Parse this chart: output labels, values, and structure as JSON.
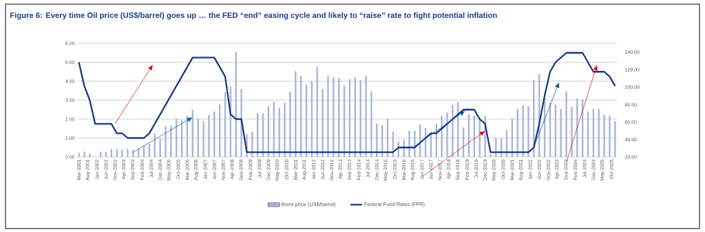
{
  "chart_data": {
    "type": "bar",
    "title": "Figure 6: Every time Oil price (US$/barrel) goes up … the FED “end” easing cycle and likely to “raise” rate to fight potential inflation",
    "x": [
      "2001-03",
      "2001-06",
      "2001-09",
      "2001-12",
      "2002-03",
      "2002-06",
      "2002-09",
      "2002-12",
      "2003-03",
      "2003-06",
      "2003-09",
      "2003-12",
      "2004-03",
      "2004-06",
      "2004-09",
      "2004-12",
      "2005-03",
      "2005-06",
      "2005-09",
      "2005-12",
      "2006-03",
      "2006-06",
      "2006-09",
      "2006-12",
      "2007-03",
      "2007-06",
      "2007-09",
      "2007-12",
      "2008-03",
      "2008-06",
      "2008-09",
      "2008-12",
      "2009-03",
      "2009-06",
      "2009-09",
      "2009-12",
      "2010-03",
      "2010-06",
      "2010-09",
      "2010-12",
      "2011-03",
      "2011-06",
      "2011-09",
      "2011-12",
      "2012-03",
      "2012-06",
      "2012-09",
      "2012-12",
      "2013-03",
      "2013-06",
      "2013-09",
      "2013-12",
      "2014-03",
      "2014-06",
      "2014-09",
      "2014-12",
      "2015-03",
      "2015-06",
      "2015-09",
      "2015-12",
      "2016-03",
      "2016-06",
      "2016-09",
      "2016-12",
      "2017-03",
      "2017-06",
      "2017-09",
      "2017-12",
      "2018-03",
      "2018-06",
      "2018-09",
      "2018-12",
      "2019-03",
      "2019-06",
      "2019-09",
      "2019-12",
      "2020-03",
      "2020-06",
      "2020-09",
      "2020-12",
      "2021-03",
      "2021-06",
      "2021-09",
      "2021-12",
      "2022-03",
      "2022-06",
      "2022-09",
      "2022-12",
      "2023-03",
      "2023-06",
      "2023-09",
      "2023-12",
      "2024-03",
      "2024-06",
      "2024-09",
      "2024-12",
      "2025-03",
      "2025-06",
      "2025-09",
      "2025-12"
    ],
    "xlim": [
      "2001-02",
      "2026-01"
    ],
    "xticks": [
      {
        "value": "2001-03",
        "label": "Mar-2001"
      },
      {
        "value": "2001-08",
        "label": "Aug-2001"
      },
      {
        "value": "2002-01",
        "label": "Jan-2002"
      },
      {
        "value": "2002-06",
        "label": "Jun-2002"
      },
      {
        "value": "2002-11",
        "label": "Nov-2002"
      },
      {
        "value": "2003-04",
        "label": "Apr-2003"
      },
      {
        "value": "2003-09",
        "label": "Sep-2003"
      },
      {
        "value": "2004-02",
        "label": "Feb-2004"
      },
      {
        "value": "2004-07",
        "label": "Jul-2004"
      },
      {
        "value": "2004-12",
        "label": "Dec-2004"
      },
      {
        "value": "2005-05",
        "label": "May-2005"
      },
      {
        "value": "2005-10",
        "label": "Oct-2005"
      },
      {
        "value": "2006-03",
        "label": "Mar-2006"
      },
      {
        "value": "2006-08",
        "label": "Aug-2006"
      },
      {
        "value": "2007-01",
        "label": "Jan-2007"
      },
      {
        "value": "2007-06",
        "label": "Jun-2007"
      },
      {
        "value": "2007-11",
        "label": "Nov-2007"
      },
      {
        "value": "2008-04",
        "label": "Apr-2008"
      },
      {
        "value": "2008-09",
        "label": "Sep-2008"
      },
      {
        "value": "2009-02",
        "label": "Feb-2009"
      },
      {
        "value": "2009-07",
        "label": "Jul-2009"
      },
      {
        "value": "2009-12",
        "label": "Dec-2009"
      },
      {
        "value": "2010-05",
        "label": "May-2010"
      },
      {
        "value": "2010-10",
        "label": "Oct-2010"
      },
      {
        "value": "2011-03",
        "label": "Mar-2011"
      },
      {
        "value": "2011-08",
        "label": "Aug-2011"
      },
      {
        "value": "2012-01",
        "label": "Jan-2012"
      },
      {
        "value": "2012-06",
        "label": "Jun-2012"
      },
      {
        "value": "2012-11",
        "label": "Nov-2012"
      },
      {
        "value": "2013-04",
        "label": "Apr-2013"
      },
      {
        "value": "2013-09",
        "label": "Sep-2013"
      },
      {
        "value": "2014-02",
        "label": "Feb-2014"
      },
      {
        "value": "2014-07",
        "label": "Jul-2014"
      },
      {
        "value": "2014-12",
        "label": "Dec-2014"
      },
      {
        "value": "2015-05",
        "label": "May-2015"
      },
      {
        "value": "2015-10",
        "label": "Oct-2015"
      },
      {
        "value": "2016-03",
        "label": "Mar-2016"
      },
      {
        "value": "2016-08",
        "label": "Aug-2016"
      },
      {
        "value": "2017-01",
        "label": "Jan-2017"
      },
      {
        "value": "2017-06",
        "label": "Jun-2017"
      },
      {
        "value": "2017-11",
        "label": "Nov-2017"
      },
      {
        "value": "2018-04",
        "label": "Apr-2018"
      },
      {
        "value": "2018-09",
        "label": "Sep-2018"
      },
      {
        "value": "2019-02",
        "label": "Feb-2019"
      },
      {
        "value": "2019-07",
        "label": "Jul-2019"
      },
      {
        "value": "2019-12",
        "label": "Dec-2019"
      },
      {
        "value": "2020-05",
        "label": "May-2020"
      },
      {
        "value": "2020-10",
        "label": "Oct-2020"
      },
      {
        "value": "2021-03",
        "label": "Mar-2021"
      },
      {
        "value": "2021-08",
        "label": "Aug-2021"
      },
      {
        "value": "2022-01",
        "label": "Jan-2022"
      },
      {
        "value": "2022-06",
        "label": "Jun-2022"
      },
      {
        "value": "2022-11",
        "label": "Nov-2022"
      },
      {
        "value": "2023-04",
        "label": "Apr-2023"
      },
      {
        "value": "2023-09",
        "label": "Sep-2023"
      },
      {
        "value": "2024-02",
        "label": "Feb-2024"
      },
      {
        "value": "2024-07",
        "label": "Jul-2024"
      },
      {
        "value": "2024-12",
        "label": "Dec-2024"
      },
      {
        "value": "2025-05",
        "label": "May-2025"
      },
      {
        "value": "2025-10",
        "label": "Oct-2025"
      }
    ],
    "ylim": [
      0,
      6
    ],
    "yticks": [
      {
        "value": 0,
        "label": "0.00"
      },
      {
        "value": 1,
        "label": "1.00"
      },
      {
        "value": 2,
        "label": "2.00"
      },
      {
        "value": 3,
        "label": "3.00"
      },
      {
        "value": 4,
        "label": "4.00"
      },
      {
        "value": 5,
        "label": "5.00"
      },
      {
        "value": 6,
        "label": "6.00"
      }
    ],
    "y2lim": [
      20,
      150
    ],
    "y2ticks": [
      {
        "value": 20,
        "label": "20.00"
      },
      {
        "value": 40,
        "label": "40.00"
      },
      {
        "value": 60,
        "label": "60.00"
      },
      {
        "value": 80,
        "label": "80.00"
      },
      {
        "value": 100,
        "label": "100.00"
      },
      {
        "value": 120,
        "label": "120.00"
      },
      {
        "value": 140,
        "label": "140.00"
      }
    ],
    "grid": "y",
    "legend": "bottom",
    "series": [
      {
        "name": "Brent price (US$/barrel)",
        "axis": "y2",
        "color": "#a9b4d8",
        "values": [
          25,
          26,
          24,
          20,
          26,
          26,
          29,
          29,
          28,
          29,
          28,
          30,
          33,
          35,
          47,
          41,
          55,
          56,
          64,
          62,
          67,
          74,
          64,
          61,
          68,
          72,
          80,
          94,
          101,
          140,
          98,
          46,
          49,
          70,
          70,
          78,
          83,
          76,
          82,
          95,
          118,
          113,
          103,
          107,
          123,
          98,
          113,
          111,
          110,
          102,
          109,
          111,
          108,
          113,
          95,
          58,
          56,
          64,
          49,
          38,
          40,
          50,
          50,
          57,
          53,
          48,
          58,
          67,
          71,
          80,
          83,
          54,
          69,
          67,
          63,
          67,
          23,
          42,
          41,
          51,
          64,
          75,
          79,
          78,
          108,
          115,
          88,
          82,
          80,
          75,
          95,
          77,
          87,
          86,
          72,
          75,
          75,
          68,
          67,
          61
        ]
      },
      {
        "name": "Federal Fund Rates (FFR)",
        "type": "line",
        "axis": "y",
        "color": "#1c3885",
        "values": [
          5.0,
          3.75,
          3.0,
          1.75,
          1.75,
          1.75,
          1.75,
          1.25,
          1.25,
          1.0,
          1.0,
          1.0,
          1.0,
          1.25,
          1.75,
          2.25,
          2.75,
          3.25,
          3.75,
          4.25,
          4.75,
          5.25,
          5.25,
          5.25,
          5.25,
          5.25,
          4.75,
          4.25,
          2.25,
          2.0,
          2.0,
          0.25,
          0.25,
          0.25,
          0.25,
          0.25,
          0.25,
          0.25,
          0.25,
          0.25,
          0.25,
          0.25,
          0.25,
          0.25,
          0.25,
          0.25,
          0.25,
          0.25,
          0.25,
          0.25,
          0.25,
          0.25,
          0.25,
          0.25,
          0.25,
          0.25,
          0.25,
          0.25,
          0.25,
          0.5,
          0.5,
          0.5,
          0.5,
          0.75,
          1.0,
          1.25,
          1.25,
          1.5,
          1.75,
          2.0,
          2.25,
          2.5,
          2.5,
          2.5,
          2.0,
          1.75,
          0.25,
          0.25,
          0.25,
          0.25,
          0.25,
          0.25,
          0.25,
          0.25,
          0.5,
          1.75,
          3.25,
          4.5,
          5.0,
          5.25,
          5.5,
          5.5,
          5.5,
          5.5,
          5.0,
          4.5,
          4.5,
          4.5,
          4.25,
          3.75
        ]
      }
    ]
  }
}
